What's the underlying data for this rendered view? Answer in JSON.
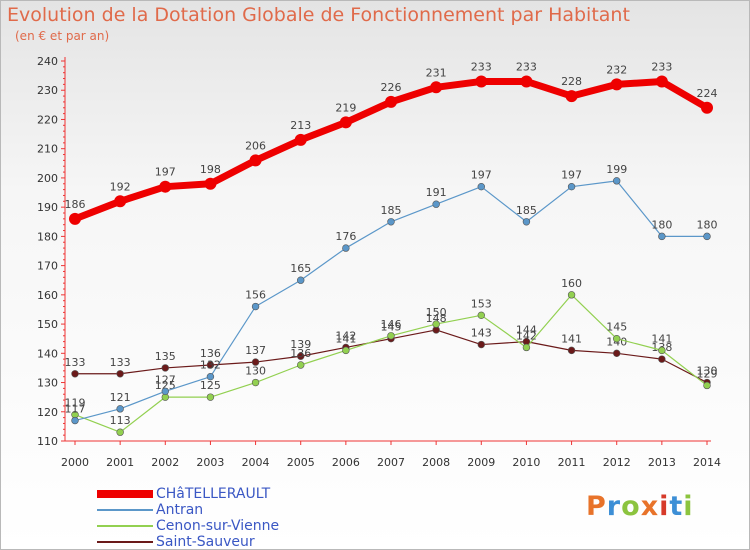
{
  "header": {
    "title": "Evolution de la Dotation Globale de Fonctionnement par Habitant",
    "subtitle": "(en € et par an)"
  },
  "logo": {
    "text": "Proxiti",
    "colors": [
      "#e8732a",
      "#3d8fd6",
      "#8cc43f",
      "#e8732a",
      "#d63a2a",
      "#3d8fd6",
      "#8cc43f"
    ]
  },
  "chart_data": {
    "type": "line",
    "x": [
      2000,
      2001,
      2002,
      2003,
      2004,
      2005,
      2006,
      2007,
      2008,
      2009,
      2010,
      2011,
      2012,
      2013,
      2014
    ],
    "ylim": [
      110,
      240
    ],
    "yticks": [
      110,
      120,
      130,
      140,
      150,
      160,
      170,
      180,
      190,
      200,
      210,
      220,
      230,
      240
    ],
    "grid": false,
    "legend_position": "bottom-left",
    "series": [
      {
        "name": "CHâTELLERAULT",
        "color": "#ee0000",
        "values": [
          186,
          192,
          197,
          198,
          206,
          213,
          219,
          226,
          231,
          233,
          233,
          228,
          232,
          233,
          224
        ]
      },
      {
        "name": "Antran",
        "color": "#5b97c9",
        "values": [
          117,
          121,
          127,
          132,
          156,
          165,
          176,
          185,
          191,
          197,
          185,
          197,
          199,
          180,
          180
        ]
      },
      {
        "name": "Cenon-sur-Vienne",
        "color": "#92d050",
        "values": [
          119,
          113,
          125,
          125,
          130,
          136,
          141,
          146,
          150,
          153,
          142,
          160,
          145,
          141,
          129
        ]
      },
      {
        "name": "Saint-Sauveur",
        "color": "#6b1a1a",
        "values": [
          133,
          133,
          135,
          136,
          137,
          139,
          142,
          145,
          148,
          143,
          144,
          141,
          140,
          138,
          130
        ]
      }
    ]
  }
}
